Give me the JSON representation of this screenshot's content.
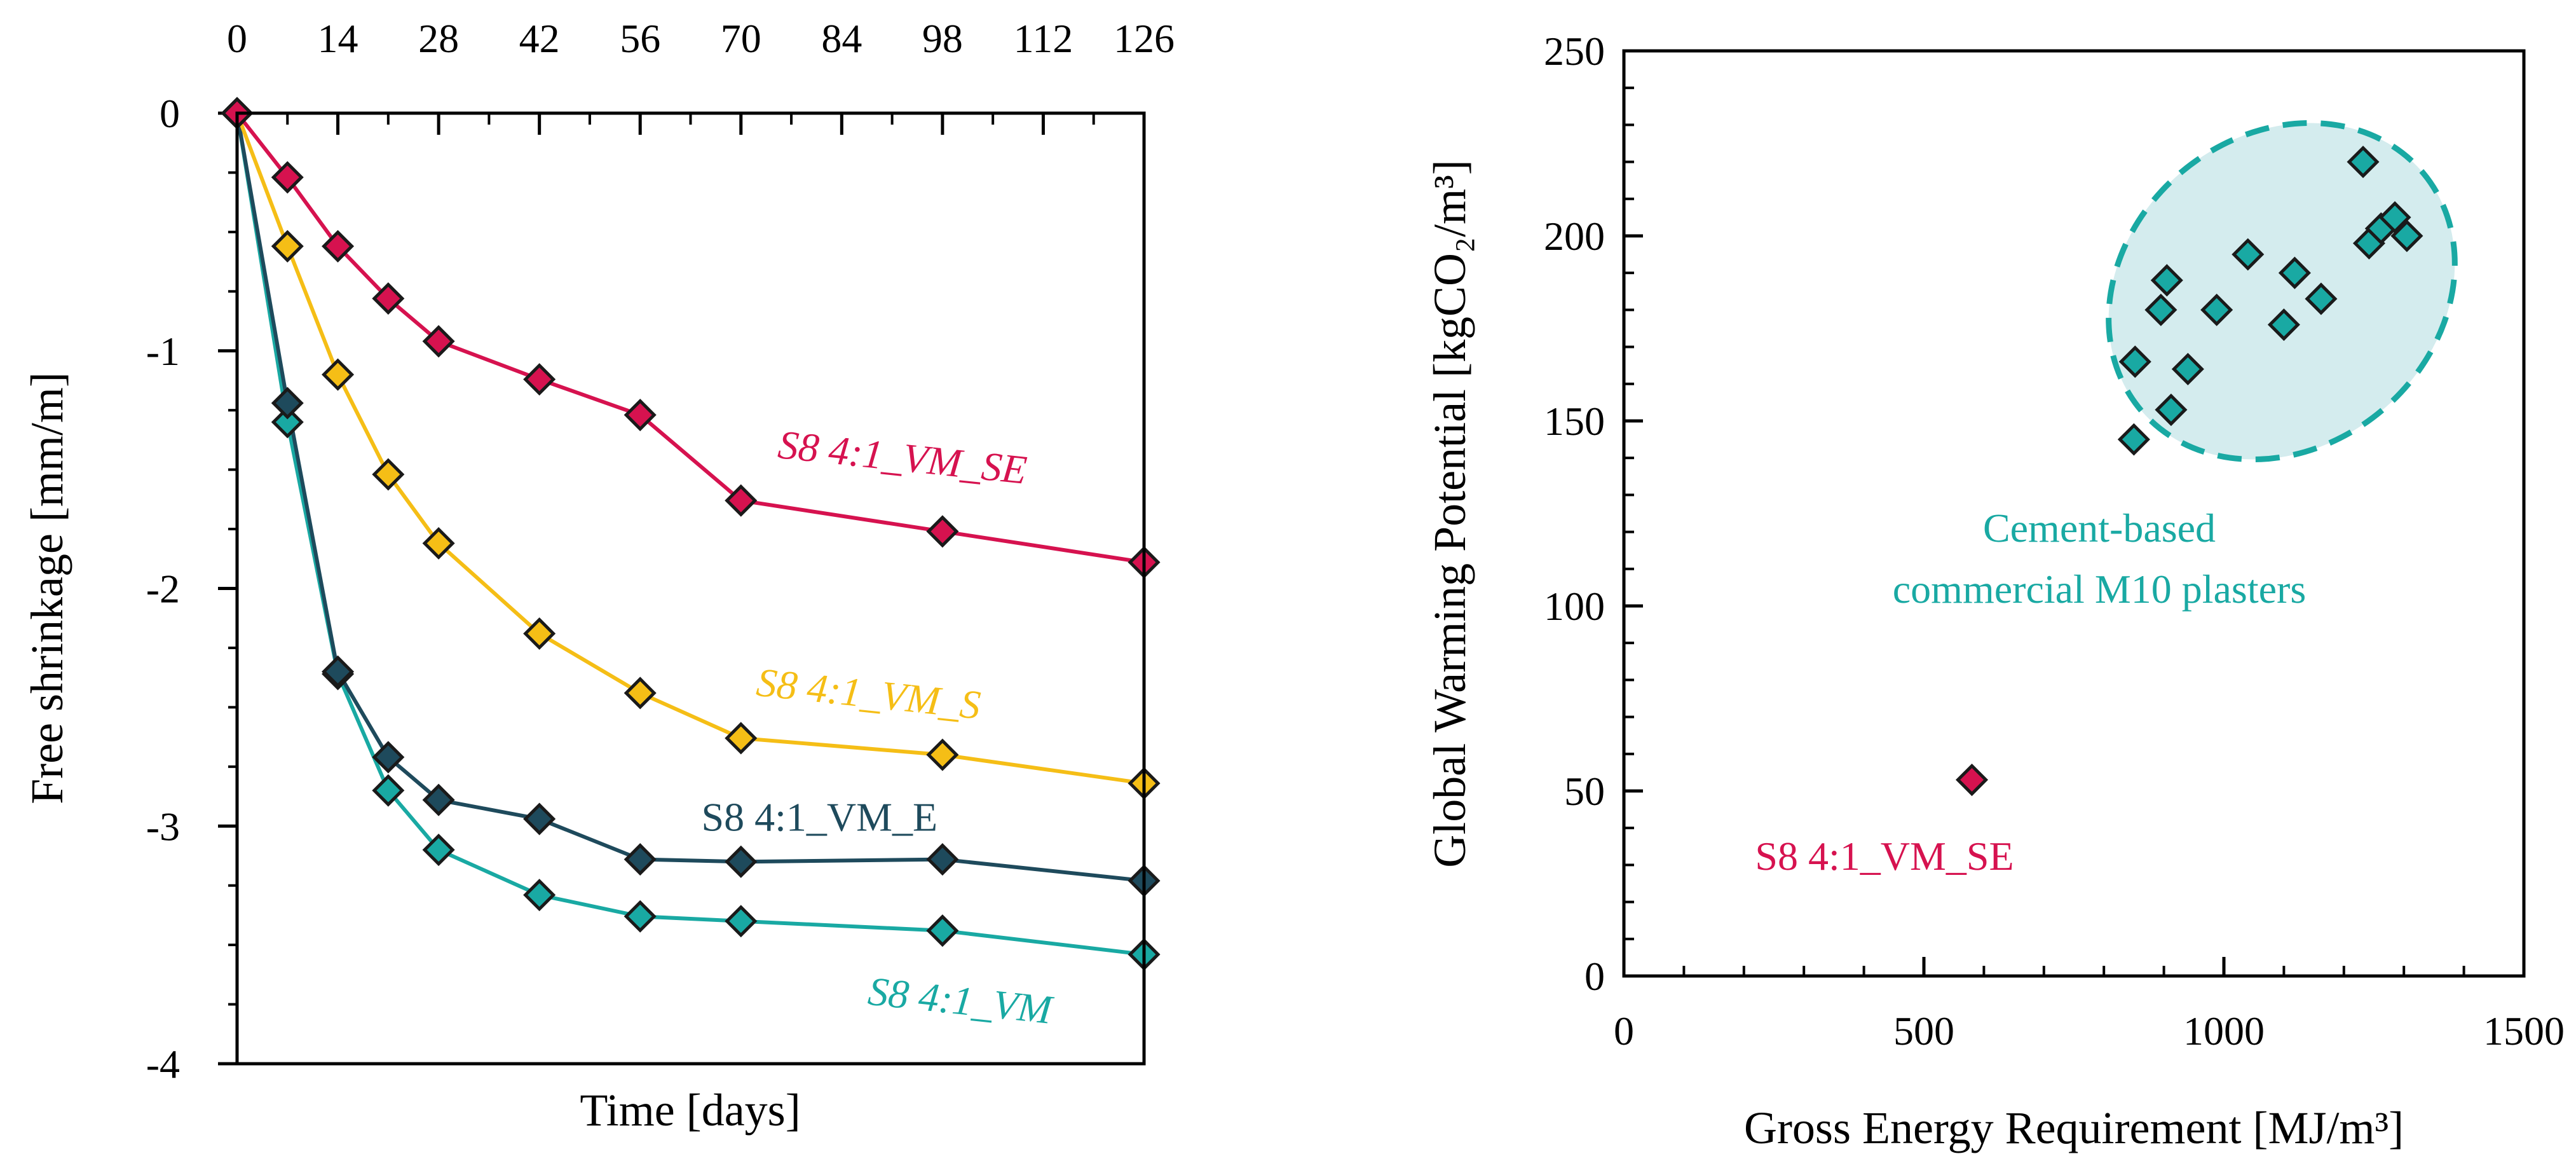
{
  "colors": {
    "S8 4:1_VM_SE": "#D6124F",
    "S8 4:1_VM_S": "#F5BE16",
    "S8 4:1_VM_E": "#1E4A5C",
    "S8 4:1_VM": "#19A9A3",
    "ellipse_fill": "#D4ECEE",
    "ellipse_stroke": "#19A9A3"
  },
  "chart_data": [
    {
      "type": "line",
      "title": "",
      "xlabel": "Time [days]",
      "ylabel": "Free shrinkage [mm/m]",
      "xlim": [
        0,
        126
      ],
      "ylim": [
        -4,
        0
      ],
      "x_ticks": [
        "0",
        "14",
        "28",
        "42",
        "56",
        "70",
        "84",
        "98",
        "112",
        "126"
      ],
      "y_ticks": [
        "0",
        "-1",
        "-2",
        "-3",
        "-4"
      ],
      "x_tick_axis": "top",
      "series": [
        {
          "name": "S8 4:1_VM_SE",
          "x": [
            0,
            7,
            14,
            21,
            28,
            42,
            56,
            70,
            98,
            126
          ],
          "values": [
            0,
            -0.27,
            -0.56,
            -0.78,
            -0.96,
            -1.12,
            -1.27,
            -1.63,
            -1.76,
            -1.89
          ]
        },
        {
          "name": "S8 4:1_VM_S",
          "x": [
            0,
            7,
            14,
            21,
            28,
            42,
            56,
            70,
            98,
            126
          ],
          "values": [
            0,
            -0.56,
            -1.1,
            -1.52,
            -1.81,
            -2.19,
            -2.44,
            -2.63,
            -2.7,
            -2.82
          ]
        },
        {
          "name": "S8 4:1_VM_E",
          "x": [
            0,
            7,
            14,
            21,
            28,
            42,
            56,
            70,
            98,
            126
          ],
          "values": [
            0,
            -1.22,
            -2.35,
            -2.71,
            -2.89,
            -2.97,
            -3.14,
            -3.15,
            -3.14,
            -3.23
          ]
        },
        {
          "name": "S8 4:1_VM",
          "x": [
            0,
            7,
            14,
            21,
            28,
            42,
            56,
            70,
            98,
            126
          ],
          "values": [
            0,
            -1.3,
            -2.36,
            -2.85,
            -3.1,
            -3.29,
            -3.38,
            -3.4,
            -3.44,
            -3.54
          ]
        }
      ],
      "annotations": [
        {
          "text": "S8 4:1_VM_SE",
          "series": "S8 4:1_VM_SE",
          "italic": true
        },
        {
          "text": "S8 4:1_VM_S",
          "series": "S8 4:1_VM_S",
          "italic": true
        },
        {
          "text": "S8 4:1_VM_E",
          "series": "S8 4:1_VM_E",
          "italic": false
        },
        {
          "text": "S8 4:1_VM",
          "series": "S8 4:1_VM",
          "italic": true
        }
      ]
    },
    {
      "type": "scatter",
      "title": "",
      "xlabel": "Gross Energy Requirement [MJ/m³]",
      "ylabel": "Global Warming Potential [kgCO₂/m³]",
      "xlim": [
        0,
        1500
      ],
      "ylim": [
        0,
        250
      ],
      "x_ticks": [
        "0",
        "500",
        "1000",
        "1500"
      ],
      "y_ticks": [
        "0",
        "50",
        "100",
        "150",
        "200",
        "250"
      ],
      "series": [
        {
          "name": "Cement-based commercial M10 plasters",
          "points": [
            [
              850,
              145
            ],
            [
              852,
              166
            ],
            [
              895,
              180
            ],
            [
              905,
              188
            ],
            [
              912,
              153
            ],
            [
              940,
              164
            ],
            [
              988,
              180
            ],
            [
              1040,
              195
            ],
            [
              1100,
              176
            ],
            [
              1118,
              190
            ],
            [
              1162,
              183
            ],
            [
              1232,
              220
            ],
            [
              1242,
              198
            ],
            [
              1262,
              202
            ],
            [
              1285,
              205
            ],
            [
              1305,
              200
            ]
          ]
        },
        {
          "name": "S8 4:1_VM_SE",
          "points": [
            [
              580,
              53
            ]
          ]
        }
      ],
      "annotations": [
        {
          "text": "Cement-based",
          "group": "commercial"
        },
        {
          "text": "commercial M10 plasters",
          "group": "commercial"
        },
        {
          "text": "S8 4:1_VM_SE",
          "group": "point"
        }
      ]
    }
  ]
}
